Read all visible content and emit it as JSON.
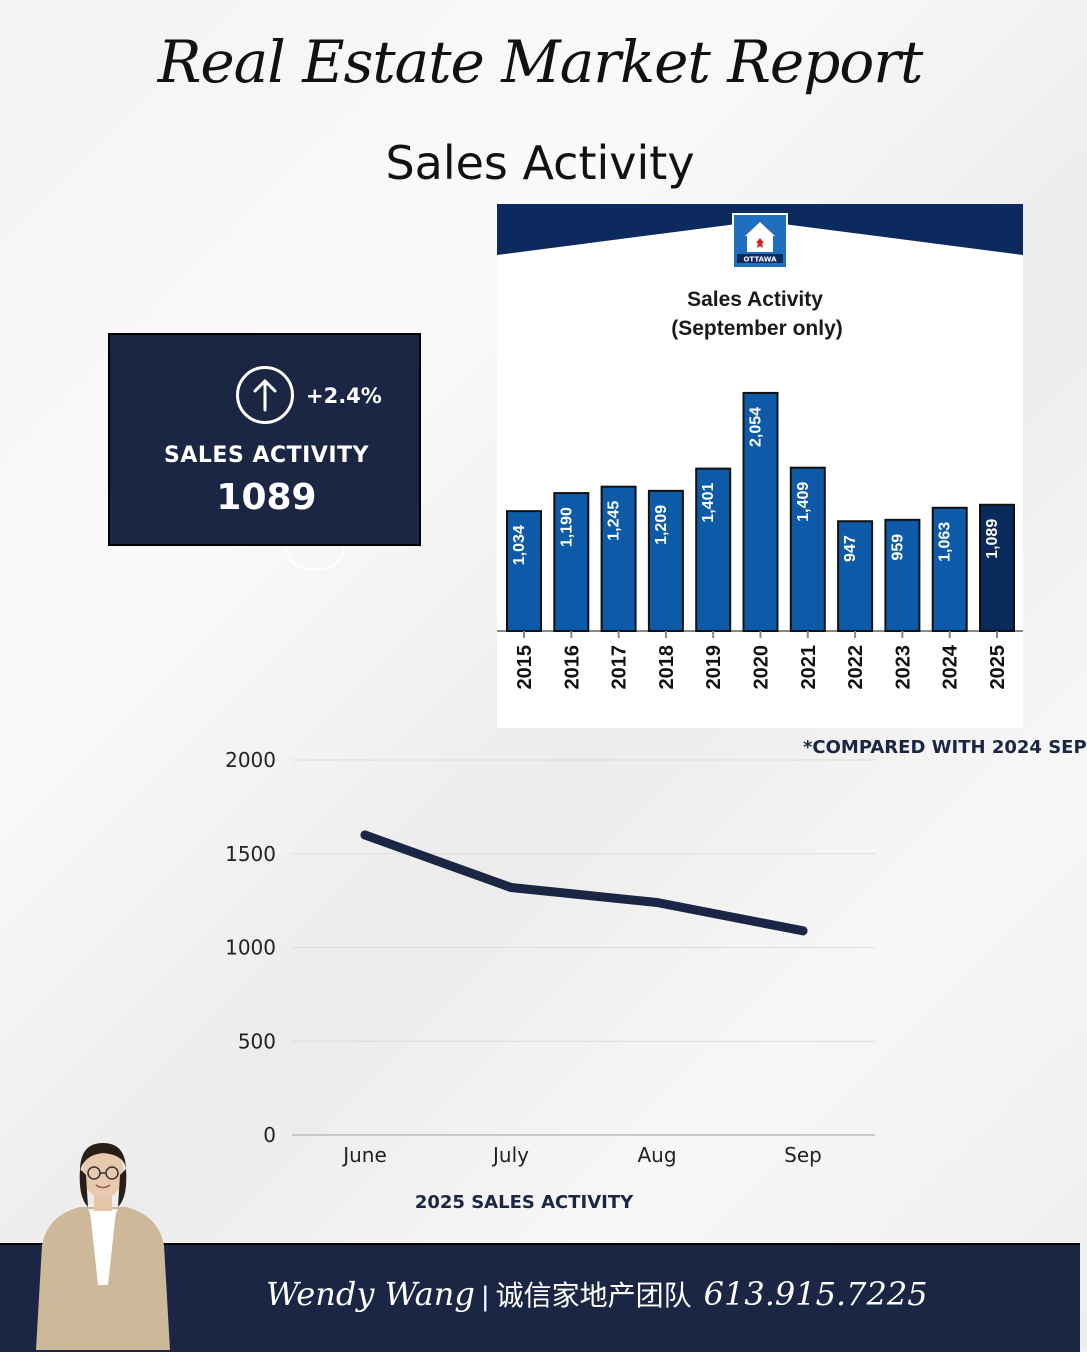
{
  "header": {
    "title": "Real Estate Market Report",
    "subtitle": "Sales Activity"
  },
  "stat_card": {
    "change": "+2.4%",
    "label": "SALES ACTIVITY",
    "value": "1089",
    "icon": "arrow-up-circle-icon"
  },
  "report_panel": {
    "logo_icon": "ottawa-real-estate-board-logo",
    "logo_text": "OTTAWA",
    "title_line1": "Sales Activity",
    "title_line2": "(September only)"
  },
  "footnote": "*COMPARED WITH 2024 SEP",
  "footer": {
    "name": "Wendy Wang",
    "separator": "|",
    "team": "诚信家地产团队",
    "phone": "613.915.7225"
  },
  "colors": {
    "navy": "#1b2644",
    "bar_blue": "#0d5ba8",
    "bar_highlight": "#0a2a5c",
    "banner": "#0d2a5e"
  },
  "chart_data": [
    {
      "type": "bar",
      "title": "Sales Activity (September only)",
      "categories": [
        "2015",
        "2016",
        "2017",
        "2018",
        "2019",
        "2020",
        "2021",
        "2022",
        "2023",
        "2024",
        "2025"
      ],
      "values": [
        1034,
        1190,
        1245,
        1209,
        1401,
        2054,
        1409,
        947,
        959,
        1063,
        1089
      ],
      "value_labels": [
        "1,034",
        "1,190",
        "1,245",
        "1,209",
        "1,401",
        "2,054",
        "1,409",
        "947",
        "959",
        "1,063",
        "1,089"
      ],
      "highlight_category": "2025",
      "ylim": [
        0,
        2200
      ],
      "grid": false
    },
    {
      "type": "line",
      "title": "2025 SALES ACTIVITY",
      "categories": [
        "June",
        "July",
        "Aug",
        "Sep"
      ],
      "values": [
        1600,
        1320,
        1240,
        1089
      ],
      "yticks": [
        "0",
        "500",
        "1000",
        "1500",
        "2000"
      ],
      "ylim": [
        0,
        2000
      ],
      "grid": true
    }
  ]
}
